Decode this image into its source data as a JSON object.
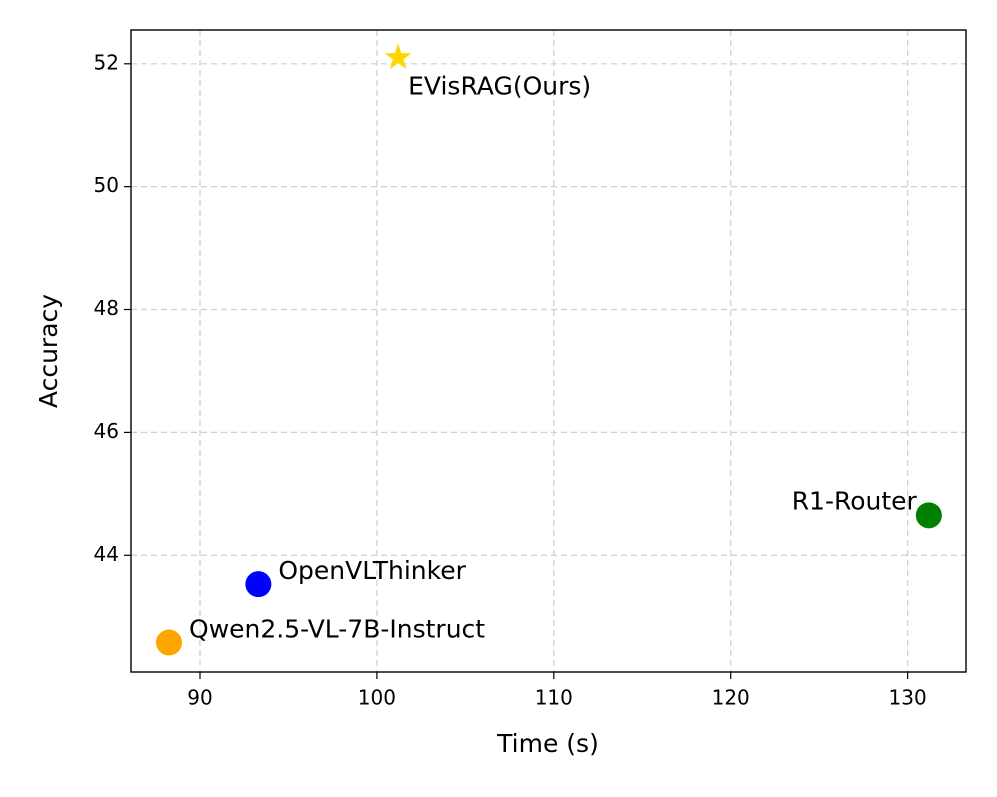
{
  "chart_data": {
    "type": "scatter",
    "xlabel": "Time (s)",
    "ylabel": "Accuracy",
    "xlim": [
      86.1,
      133.3
    ],
    "ylim": [
      42.1,
      52.55
    ],
    "xticks": [
      90,
      100,
      110,
      120,
      130
    ],
    "yticks": [
      44,
      46,
      48,
      50,
      52
    ],
    "grid": true,
    "series": [
      {
        "name": "EVisRAG(Ours)",
        "color": "#ffd700",
        "marker": "star",
        "x": [
          101.2
        ],
        "values": [
          52.1
        ]
      },
      {
        "name": "R1-Router",
        "color": "#008000",
        "marker": "circle",
        "x": [
          131.2
        ],
        "values": [
          44.65
        ]
      },
      {
        "name": "OpenVLThinker",
        "color": "#0000ff",
        "marker": "circle",
        "x": [
          93.3
        ],
        "values": [
          43.53
        ]
      },
      {
        "name": "Qwen2.5-VL-7B-Instruct",
        "color": "#ffa500",
        "marker": "circle",
        "x": [
          88.25
        ],
        "values": [
          42.58
        ]
      }
    ]
  }
}
